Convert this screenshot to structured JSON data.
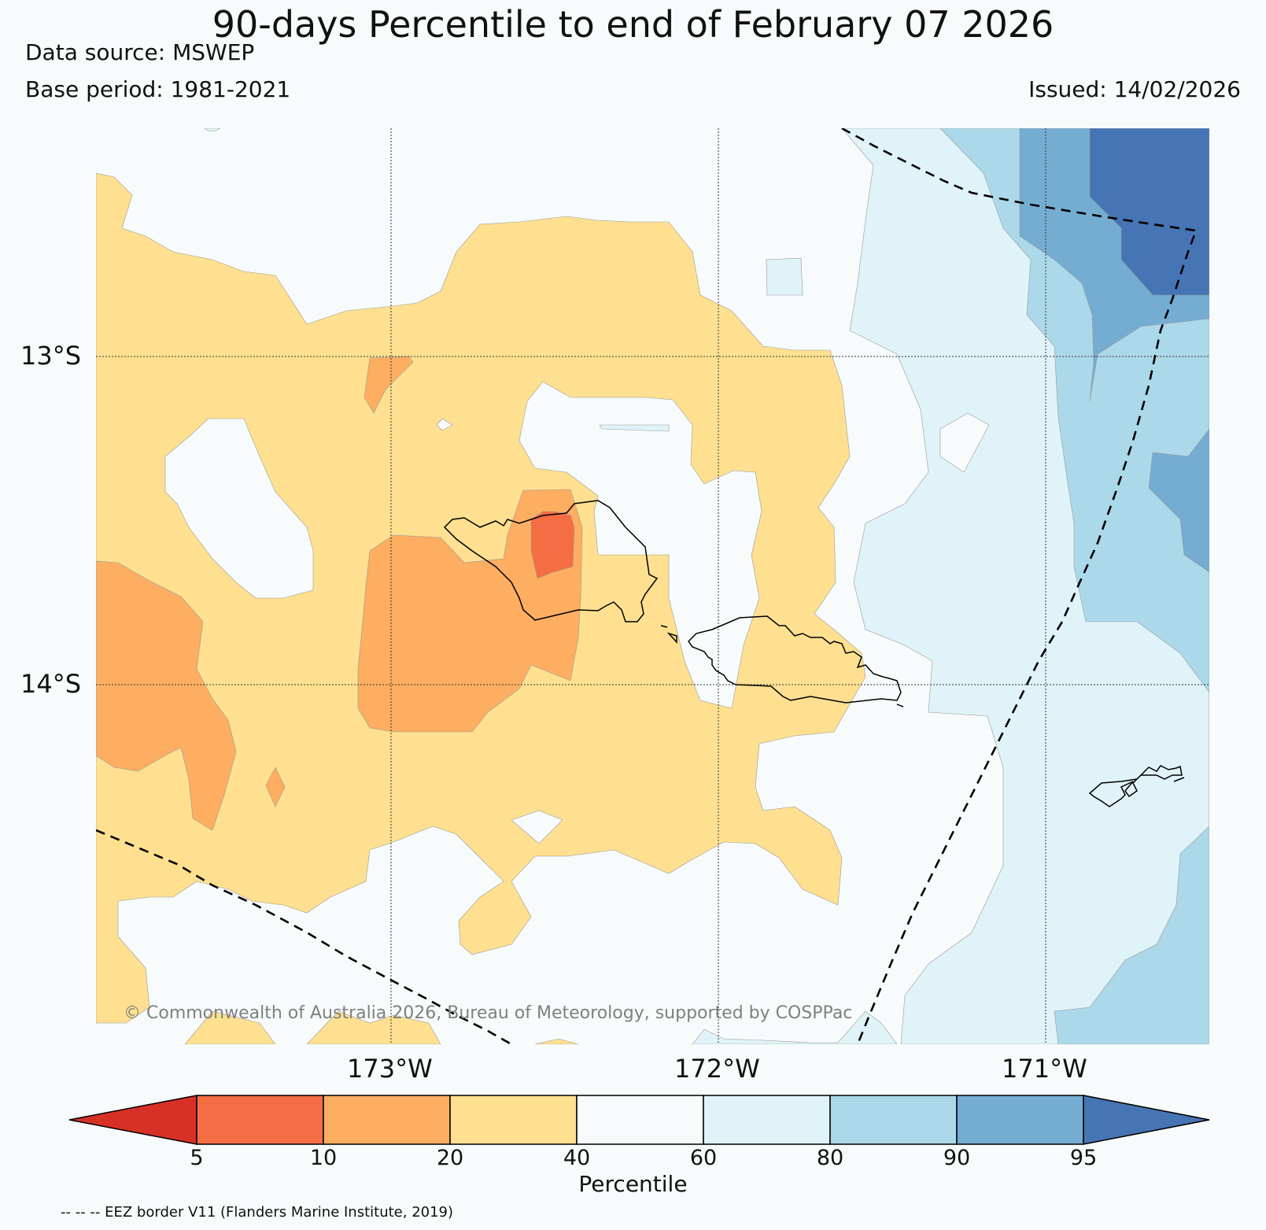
{
  "title": "90-days Percentile to end of February 07 2026",
  "data_source": "Data source: MSWEP",
  "base_period": "Base period: 1981-2021",
  "issued": "Issued: 14/02/2026",
  "copyright": "© Commonwealth of Australia 2026, Bureau of Meteorology, supported by COSPPac",
  "lat_labels": [
    "13°S",
    "14°S"
  ],
  "lon_labels": [
    "173°W",
    "172°W",
    "171°W"
  ],
  "colorbar": {
    "label": "Percentile",
    "ticks": [
      "5",
      "10",
      "20",
      "40",
      "60",
      "80",
      "90",
      "95"
    ],
    "colors": {
      "lt5": "#d73027",
      "5-10": "#f46d43",
      "10-20": "#fdae61",
      "20-40": "#fee090",
      "40-60": "#f7fbfc",
      "60-80": "#e0f3f8",
      "80-90": "#abd9e9",
      "90-95": "#74add1",
      "gt95": "#4575b4"
    }
  },
  "footer": "-- -- -- EEZ border V11 (Flanders Marine Institute, 2019)"
}
